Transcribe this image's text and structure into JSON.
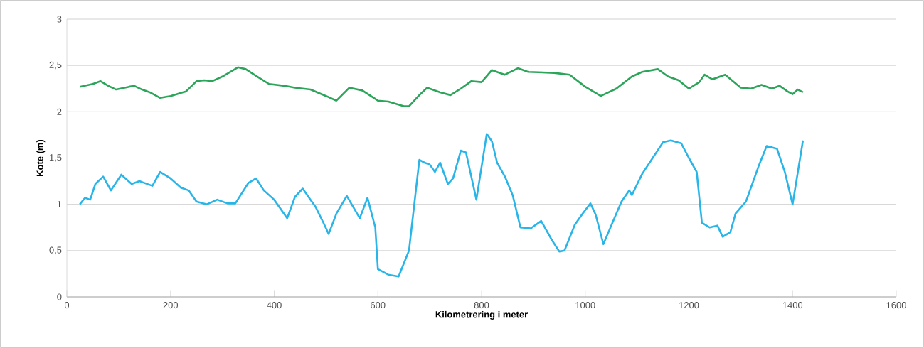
{
  "chart_data": {
    "type": "line",
    "xlabel": "Kilometrering i meter",
    "ylabel": "Kote (m)",
    "xlim": [
      0,
      1600
    ],
    "xticks": [
      0,
      200,
      400,
      600,
      800,
      1000,
      1200,
      1400,
      1600
    ],
    "ylim": [
      0,
      3
    ],
    "yticks": [
      {
        "value": 0,
        "label": "0"
      },
      {
        "value": 0.5,
        "label": "0,5"
      },
      {
        "value": 1,
        "label": "1"
      },
      {
        "value": 1.5,
        "label": "1,5"
      },
      {
        "value": 2,
        "label": "2"
      },
      {
        "value": 2.5,
        "label": "2,5"
      },
      {
        "value": 3,
        "label": "3"
      }
    ],
    "grid": "y",
    "marker": "none",
    "line_style": "solid",
    "series": [
      {
        "color": "#2ca55a",
        "x": [
          25,
          50,
          65,
          80,
          95,
          120,
          130,
          145,
          160,
          180,
          200,
          230,
          250,
          265,
          280,
          300,
          330,
          345,
          370,
          390,
          420,
          440,
          470,
          500,
          520,
          545,
          570,
          600,
          620,
          650,
          660,
          680,
          695,
          720,
          740,
          760,
          780,
          800,
          820,
          845,
          870,
          890,
          940,
          970,
          1000,
          1030,
          1060,
          1090,
          1110,
          1140,
          1160,
          1180,
          1200,
          1220,
          1230,
          1245,
          1270,
          1300,
          1320,
          1340,
          1360,
          1375,
          1390,
          1400,
          1410,
          1420
        ],
        "values": [
          2.27,
          2.3,
          2.33,
          2.28,
          2.24,
          2.27,
          2.28,
          2.24,
          2.21,
          2.15,
          2.17,
          2.22,
          2.33,
          2.34,
          2.33,
          2.38,
          2.48,
          2.46,
          2.37,
          2.3,
          2.28,
          2.26,
          2.24,
          2.17,
          2.12,
          2.26,
          2.23,
          2.12,
          2.11,
          2.06,
          2.06,
          2.18,
          2.26,
          2.21,
          2.18,
          2.25,
          2.33,
          2.32,
          2.45,
          2.4,
          2.47,
          2.43,
          2.42,
          2.4,
          2.27,
          2.17,
          2.25,
          2.38,
          2.43,
          2.46,
          2.38,
          2.34,
          2.25,
          2.32,
          2.4,
          2.35,
          2.4,
          2.26,
          2.25,
          2.29,
          2.25,
          2.28,
          2.22,
          2.19,
          2.24,
          2.21
        ]
      },
      {
        "color": "#29b5e8",
        "x": [
          25,
          35,
          45,
          55,
          70,
          85,
          105,
          125,
          140,
          165,
          180,
          200,
          220,
          235,
          250,
          270,
          290,
          310,
          325,
          350,
          365,
          380,
          400,
          425,
          440,
          455,
          470,
          480,
          495,
          505,
          520,
          540,
          565,
          580,
          595,
          600,
          620,
          640,
          660,
          680,
          690,
          700,
          710,
          720,
          735,
          745,
          760,
          770,
          790,
          810,
          820,
          830,
          845,
          860,
          875,
          895,
          915,
          935,
          950,
          960,
          980,
          995,
          1010,
          1020,
          1035,
          1060,
          1070,
          1085,
          1090,
          1110,
          1130,
          1150,
          1165,
          1185,
          1200,
          1215,
          1225,
          1240,
          1255,
          1265,
          1280,
          1290,
          1310,
          1335,
          1350,
          1370,
          1385,
          1400,
          1420
        ],
        "values": [
          1.0,
          1.07,
          1.05,
          1.22,
          1.3,
          1.15,
          1.32,
          1.22,
          1.25,
          1.2,
          1.35,
          1.28,
          1.18,
          1.15,
          1.03,
          1.0,
          1.05,
          1.01,
          1.01,
          1.23,
          1.28,
          1.15,
          1.05,
          0.85,
          1.08,
          1.17,
          1.05,
          0.97,
          0.8,
          0.68,
          0.9,
          1.09,
          0.85,
          1.07,
          0.75,
          0.3,
          0.24,
          0.22,
          0.5,
          1.48,
          1.45,
          1.43,
          1.35,
          1.45,
          1.22,
          1.28,
          1.58,
          1.56,
          1.05,
          1.76,
          1.68,
          1.45,
          1.3,
          1.1,
          0.75,
          0.74,
          0.82,
          0.62,
          0.49,
          0.5,
          0.78,
          0.9,
          1.01,
          0.89,
          0.57,
          0.9,
          1.03,
          1.15,
          1.1,
          1.33,
          1.5,
          1.67,
          1.69,
          1.66,
          1.5,
          1.35,
          0.8,
          0.75,
          0.77,
          0.65,
          0.7,
          0.9,
          1.03,
          1.42,
          1.63,
          1.6,
          1.35,
          1.0,
          1.69
        ]
      }
    ]
  }
}
